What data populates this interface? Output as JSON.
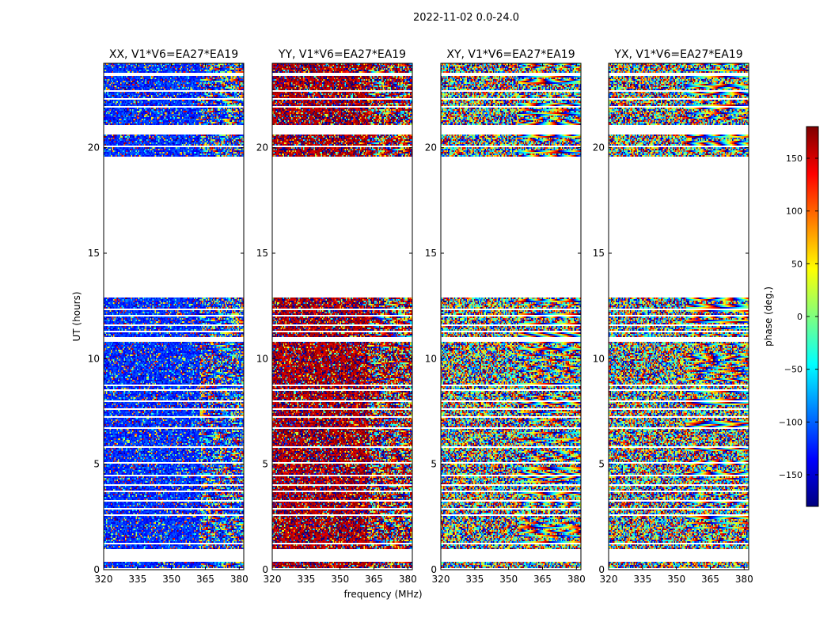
{
  "chart_data": {
    "type": "heatmap",
    "suptitle": "2022-11-02 0.0-24.0",
    "xlabel": "frequency (MHz)",
    "ylabel": "UT (hours)",
    "xlim": [
      320,
      382
    ],
    "ylim": [
      0,
      24
    ],
    "xticks": [
      320,
      335,
      350,
      365,
      380
    ],
    "yticks": [
      0,
      5,
      10,
      15,
      20
    ],
    "colorbar": {
      "label": "phase (deg.)",
      "range": [
        -180,
        180
      ],
      "ticks": [
        150,
        100,
        50,
        0,
        -50,
        -100,
        -150
      ],
      "tick_labels": [
        "150",
        "100",
        "50",
        "0",
        "−50",
        "−100",
        "−150"
      ],
      "colormap": [
        "#00007f",
        "#0000ff",
        "#007fff",
        "#00ffff",
        "#7fff7f",
        "#ffff00",
        "#ff7f00",
        "#ff0000",
        "#7f0000"
      ]
    },
    "panels": [
      {
        "title": "XX, V1*V6=EA27*EA19",
        "bias_phase": -120,
        "bias_strength": 0.75
      },
      {
        "title": "YY, V1*V6=EA27*EA19",
        "bias_phase": 165,
        "bias_strength": 0.75
      },
      {
        "title": "XY, V1*V6=EA27*EA19",
        "bias_phase": 0,
        "bias_strength": 0.0
      },
      {
        "title": "YX, V1*V6=EA27*EA19",
        "bias_phase": 0,
        "bias_strength": 0.0
      }
    ],
    "data_hours": [
      [
        0.05,
        0.35
      ],
      [
        0.95,
        1.2
      ],
      [
        1.25,
        2.55
      ],
      [
        2.6,
        2.85
      ],
      [
        2.9,
        3.25
      ],
      [
        3.3,
        3.7
      ],
      [
        3.75,
        4.0
      ],
      [
        4.05,
        4.45
      ],
      [
        4.5,
        5.05
      ],
      [
        5.1,
        5.8
      ],
      [
        5.85,
        6.2
      ],
      [
        6.25,
        6.7
      ],
      [
        6.75,
        7.2
      ],
      [
        7.25,
        7.6
      ],
      [
        7.65,
        7.95
      ],
      [
        8.0,
        8.5
      ],
      [
        8.55,
        8.7
      ],
      [
        8.75,
        10.8
      ],
      [
        11.0,
        11.25
      ],
      [
        11.3,
        11.55
      ],
      [
        11.6,
        12.0
      ],
      [
        12.05,
        12.3
      ],
      [
        12.35,
        12.9
      ],
      [
        19.55,
        20.05
      ],
      [
        20.1,
        20.45
      ],
      [
        20.5,
        20.65
      ],
      [
        21.05,
        21.35
      ],
      [
        21.4,
        21.9
      ],
      [
        21.95,
        22.3
      ],
      [
        22.35,
        22.65
      ],
      [
        22.7,
        23.0
      ],
      [
        23.05,
        23.4
      ],
      [
        23.55,
        24.0
      ]
    ]
  }
}
